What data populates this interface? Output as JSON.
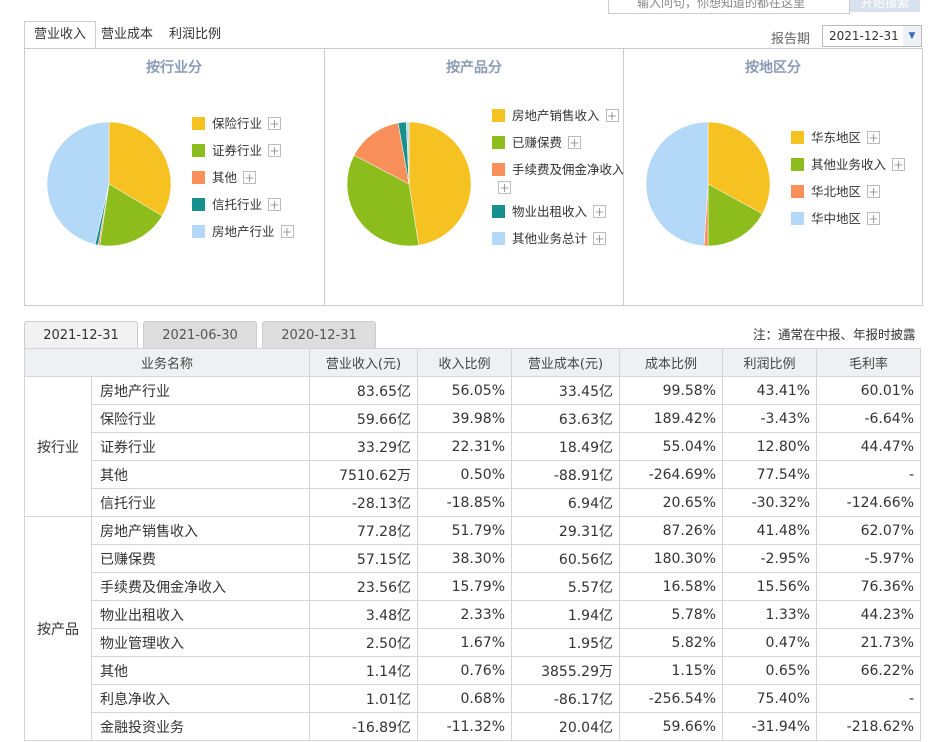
{
  "search": {
    "placeholder": "输入问句，你想知道的都在这里",
    "button": "开始搜索"
  },
  "tabs": [
    "营业收入",
    "营业成本",
    "利润比例"
  ],
  "report_period": {
    "label": "报告期",
    "value": "2021-12-31"
  },
  "charts": [
    {
      "type": "pie",
      "title": "按行业分",
      "categories": [
        "保险行业",
        "证券行业",
        "其他",
        "信托行业",
        "房地产行业"
      ],
      "colors": [
        "#f5c221",
        "#8cbd1c",
        "#f98f5a",
        "#17918d",
        "#b4d8f7"
      ],
      "values": [
        33.6,
        18.8,
        0.4,
        0.8,
        46.4
      ]
    },
    {
      "type": "pie",
      "title": "按产品分",
      "categories": [
        "房地产销售收入",
        "已赚保费",
        "手续费及佣金净收入",
        "物业出租收入",
        "其他业务总计"
      ],
      "colors": [
        "#f5c221",
        "#8cbd1c",
        "#f98f5a",
        "#17918d",
        "#b4d8f7"
      ],
      "values": [
        47.5,
        35.2,
        14.5,
        2.1,
        0.7
      ]
    },
    {
      "type": "pie",
      "title": "按地区分",
      "categories": [
        "华东地区",
        "其他业务收入",
        "华北地区",
        "华中地区"
      ],
      "colors": [
        "#f5c221",
        "#8cbd1c",
        "#f98f5a",
        "#b4d8f7"
      ],
      "values": [
        33,
        17,
        1,
        49
      ]
    }
  ],
  "date_tabs": [
    "2021-12-31",
    "2021-06-30",
    "2020-12-31"
  ],
  "note": "注：通常在中报、年报时披露",
  "table": {
    "columns": [
      "业务名称",
      "营业收入(元)",
      "收入比例",
      "营业成本(元)",
      "成本比例",
      "利润比例",
      "毛利率"
    ],
    "groups": [
      {
        "name": "按行业",
        "rows": [
          [
            "房地产行业",
            "83.65亿",
            "56.05%",
            "33.45亿",
            "99.58%",
            "43.41%",
            "60.01%"
          ],
          [
            "保险行业",
            "59.66亿",
            "39.98%",
            "63.63亿",
            "189.42%",
            "-3.43%",
            "-6.64%"
          ],
          [
            "证券行业",
            "33.29亿",
            "22.31%",
            "18.49亿",
            "55.04%",
            "12.80%",
            "44.47%"
          ],
          [
            "其他",
            "7510.62万",
            "0.50%",
            "-88.91亿",
            "-264.69%",
            "77.54%",
            "-"
          ],
          [
            "信托行业",
            "-28.13亿",
            "-18.85%",
            "6.94亿",
            "20.65%",
            "-30.32%",
            "-124.66%"
          ]
        ]
      },
      {
        "name": "按产品",
        "rows": [
          [
            "房地产销售收入",
            "77.28亿",
            "51.79%",
            "29.31亿",
            "87.26%",
            "41.48%",
            "62.07%"
          ],
          [
            "已赚保费",
            "57.15亿",
            "38.30%",
            "60.56亿",
            "180.30%",
            "-2.95%",
            "-5.97%"
          ],
          [
            "手续费及佣金净收入",
            "23.56亿",
            "15.79%",
            "5.57亿",
            "16.58%",
            "15.56%",
            "76.36%"
          ],
          [
            "物业出租收入",
            "3.48亿",
            "2.33%",
            "1.94亿",
            "5.78%",
            "1.33%",
            "44.23%"
          ],
          [
            "物业管理收入",
            "2.50亿",
            "1.67%",
            "1.95亿",
            "5.82%",
            "0.47%",
            "21.73%"
          ],
          [
            "其他",
            "1.14亿",
            "0.76%",
            "3855.29万",
            "1.15%",
            "0.65%",
            "66.22%"
          ],
          [
            "利息净收入",
            "1.01亿",
            "0.68%",
            "-86.17亿",
            "-256.54%",
            "75.40%",
            "-"
          ],
          [
            "金融投资业务",
            "-16.89亿",
            "-11.32%",
            "20.04亿",
            "59.66%",
            "-31.94%",
            "-218.62%"
          ]
        ]
      }
    ]
  }
}
